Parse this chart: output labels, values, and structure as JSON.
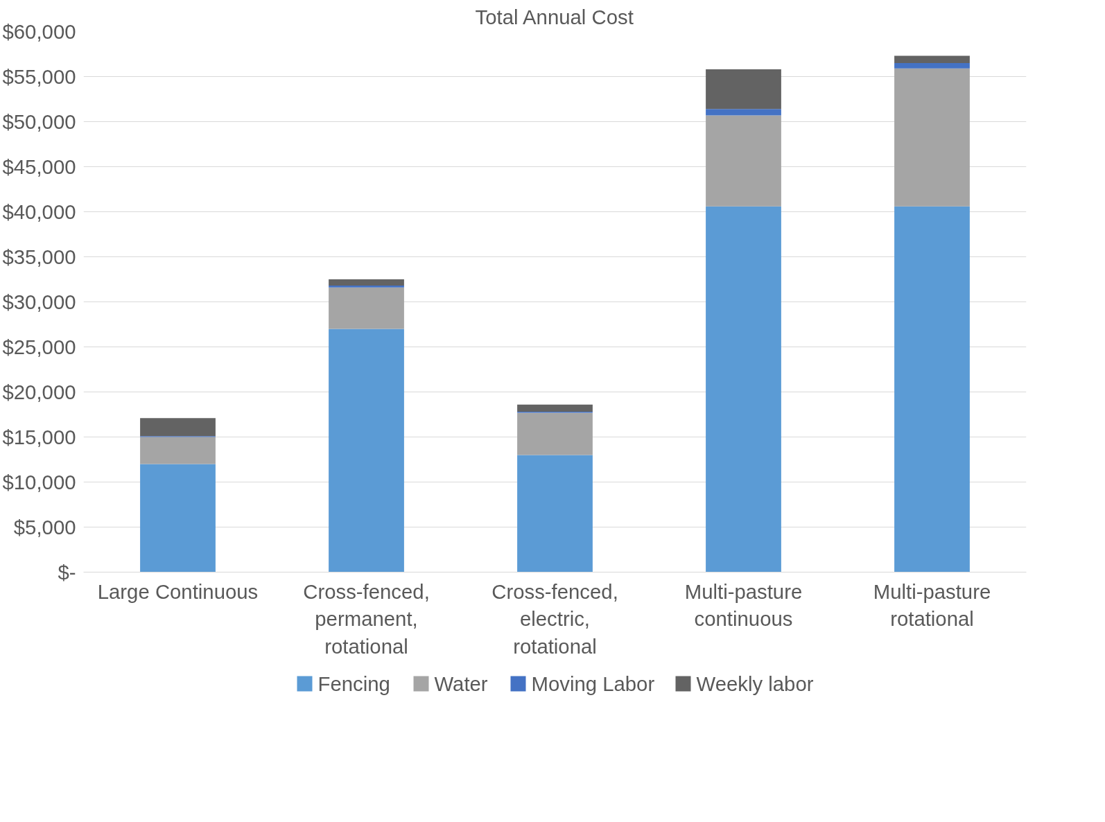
{
  "chart_data": {
    "type": "bar",
    "title": "Total Annual Cost",
    "stacked": true,
    "categories": [
      "Large Continuous",
      "Cross-fenced, permanent, rotational",
      "Cross-fenced, electric, rotational",
      "Multi-pasture continuous",
      "Multi-pasture rotational"
    ],
    "series": [
      {
        "name": "Fencing",
        "color": "#5b9bd5",
        "values": [
          12000,
          27000,
          13000,
          40600,
          40600
        ]
      },
      {
        "name": "Water",
        "color": "#a5a5a5",
        "values": [
          3000,
          4600,
          4700,
          10100,
          15300
        ]
      },
      {
        "name": "Moving Labor",
        "color": "#4472c4",
        "values": [
          100,
          200,
          100,
          700,
          600
        ]
      },
      {
        "name": "Weekly labor",
        "color": "#636363",
        "values": [
          2000,
          700,
          800,
          4400,
          800
        ]
      }
    ],
    "ylim": [
      0,
      60000
    ],
    "yticks": [
      {
        "value": 0,
        "label": "$-"
      },
      {
        "value": 5000,
        "label": "$5,000"
      },
      {
        "value": 10000,
        "label": "$10,000"
      },
      {
        "value": 15000,
        "label": "$15,000"
      },
      {
        "value": 20000,
        "label": "$20,000"
      },
      {
        "value": 25000,
        "label": "$25,000"
      },
      {
        "value": 30000,
        "label": "$30,000"
      },
      {
        "value": 35000,
        "label": "$35,000"
      },
      {
        "value": 40000,
        "label": "$40,000"
      },
      {
        "value": 45000,
        "label": "$45,000"
      },
      {
        "value": 50000,
        "label": "$50,000"
      },
      {
        "value": 55000,
        "label": "$55,000"
      },
      {
        "value": 60000,
        "label": "$60,000"
      }
    ],
    "grid": "y",
    "legend": "bottom"
  }
}
